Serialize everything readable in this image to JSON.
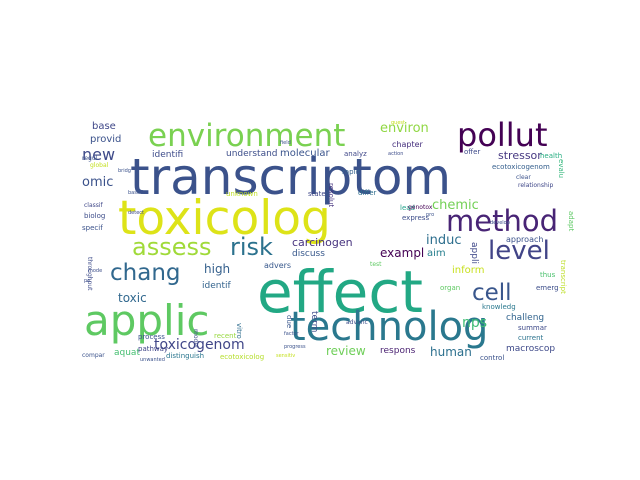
{
  "wordcloud": {
    "words": [
      {
        "text": "transcriptom",
        "color": "#3b528b"
      },
      {
        "text": "effect",
        "color": "#22a884"
      },
      {
        "text": "toxicolog",
        "color": "#dde318"
      },
      {
        "text": "environment",
        "color": "#7ad151"
      },
      {
        "text": "pollut",
        "color": "#440154"
      },
      {
        "text": "technolog",
        "color": "#2a788e"
      },
      {
        "text": "applic",
        "color": "#5ec962"
      },
      {
        "text": "method",
        "color": "#482475"
      },
      {
        "text": "assess",
        "color": "#a0da39"
      },
      {
        "text": "risk",
        "color": "#2c728e"
      },
      {
        "text": "level",
        "color": "#414487"
      },
      {
        "text": "chang",
        "color": "#31688e"
      },
      {
        "text": "cell",
        "color": "#39568c"
      },
      {
        "text": "new",
        "color": "#3e4a89"
      },
      {
        "text": "environ",
        "color": "#90d743"
      },
      {
        "text": "chemic",
        "color": "#73d056"
      },
      {
        "text": "stressor",
        "color": "#453781"
      },
      {
        "text": "carcinogen",
        "color": "#46327e"
      },
      {
        "text": "toxicogenom",
        "color": "#404688"
      },
      {
        "text": "review",
        "color": "#6ece58"
      },
      {
        "text": "human",
        "color": "#2d708e"
      },
      {
        "text": "nps",
        "color": "#3dbc74"
      },
      {
        "text": "induc",
        "color": "#2e6f8e"
      },
      {
        "text": "high",
        "color": "#35608d"
      },
      {
        "text": "toxic",
        "color": "#31688e"
      },
      {
        "text": "omic",
        "color": "#3b528b"
      },
      {
        "text": "exampl",
        "color": "#440154"
      },
      {
        "text": "aim",
        "color": "#277f8e"
      },
      {
        "text": "base",
        "color": "#3f4788"
      },
      {
        "text": "provid",
        "color": "#3b528b"
      },
      {
        "text": "identifi",
        "color": "#3e4c8a"
      },
      {
        "text": "understand",
        "color": "#3d4e8a"
      },
      {
        "text": "molecular",
        "color": "#3a548c"
      },
      {
        "text": "analyz",
        "color": "#3f4788"
      },
      {
        "text": "chapter",
        "color": "#46307e"
      },
      {
        "text": "ecotoxicogenom",
        "color": "#355f8d"
      },
      {
        "text": "inform",
        "color": "#c8e020"
      },
      {
        "text": "approach",
        "color": "#3b528b"
      },
      {
        "text": "identif",
        "color": "#33638d"
      },
      {
        "text": "advers",
        "color": "#38588c"
      },
      {
        "text": "respons",
        "color": "#481f70"
      },
      {
        "text": "macroscop",
        "color": "#3e4989"
      },
      {
        "text": "challeng",
        "color": "#32648e"
      },
      {
        "text": "aquat",
        "color": "#44bf70"
      },
      {
        "text": "discuss",
        "color": "#38598c"
      },
      {
        "text": "term",
        "color": "#3e4c8a"
      },
      {
        "text": "appli",
        "color": "#3f4889"
      },
      {
        "text": "recent",
        "color": "#97d83f"
      },
      {
        "text": "process",
        "color": "#3b528b"
      },
      {
        "text": "pathway",
        "color": "#404588"
      },
      {
        "text": "distinguish",
        "color": "#2a768e"
      },
      {
        "text": "ecotoxicolog",
        "color": "#b5de2b"
      },
      {
        "text": "current",
        "color": "#2c738e"
      },
      {
        "text": "summar",
        "color": "#3e4a89"
      },
      {
        "text": "control",
        "color": "#3b528b"
      },
      {
        "text": "knowledg",
        "color": "#2a788e"
      },
      {
        "text": "emerg",
        "color": "#3d4e8a"
      },
      {
        "text": "organ",
        "color": "#5ec962"
      },
      {
        "text": "thus",
        "color": "#4ac16d"
      },
      {
        "text": "express",
        "color": "#3d4d8a"
      },
      {
        "text": "lead",
        "color": "#1fa188"
      },
      {
        "text": "rapid",
        "color": "#34618d"
      },
      {
        "text": "differ",
        "color": "#2e6e8e"
      },
      {
        "text": "resolut",
        "color": "#46337f"
      },
      {
        "text": "state",
        "color": "#3f4788"
      },
      {
        "text": "unknown",
        "color": "#c0df25"
      },
      {
        "text": "offer",
        "color": "#3e4989"
      },
      {
        "text": "health",
        "color": "#26ad81"
      },
      {
        "text": "evalu",
        "color": "#32b67a"
      },
      {
        "text": "adapt",
        "color": "#5cc863"
      },
      {
        "text": "relationship",
        "color": "#3f4788"
      },
      {
        "text": "clear",
        "color": "#3b528b"
      },
      {
        "text": "advanc",
        "color": "#3d4e8a"
      },
      {
        "text": "genotox",
        "color": "#440154"
      },
      {
        "text": "test",
        "color": "#5ec962"
      },
      {
        "text": "transcript",
        "color": "#bddf26"
      },
      {
        "text": "throughput",
        "color": "#3e4c8a"
      },
      {
        "text": "specif",
        "color": "#3b528b"
      },
      {
        "text": "biolog",
        "color": "#3d4d8a"
      },
      {
        "text": "classif",
        "color": "#3f4788"
      },
      {
        "text": "global",
        "color": "#c5e021"
      },
      {
        "text": "regul",
        "color": "#3b528b"
      },
      {
        "text": "model",
        "color": "#3e4a89"
      },
      {
        "text": "vitro",
        "color": "#2e6d8e"
      },
      {
        "text": "due",
        "color": "#39568c"
      },
      {
        "text": "compar",
        "color": "#3b528b"
      },
      {
        "text": "mode",
        "color": "#3d4e8a"
      },
      {
        "text": "bridg",
        "color": "#3b528b"
      },
      {
        "text": "based",
        "color": "#3b528b"
      },
      {
        "text": "field",
        "color": "#3b528b"
      },
      {
        "text": "action",
        "color": "#3d4d8a"
      },
      {
        "text": "quest",
        "color": "#c5e021"
      },
      {
        "text": "pro",
        "color": "#3b528b"
      },
      {
        "text": "detect",
        "color": "#3e4c8a"
      },
      {
        "text": "pe",
        "color": "#3d4e8a"
      },
      {
        "text": "unwanted",
        "color": "#3b528b"
      },
      {
        "text": "progress",
        "color": "#3b528b"
      },
      {
        "text": "factor",
        "color": "#3b528b"
      },
      {
        "text": "sensitiv",
        "color": "#c5e021"
      },
      {
        "text": "develop",
        "color": "#3d4d8a"
      }
    ]
  }
}
